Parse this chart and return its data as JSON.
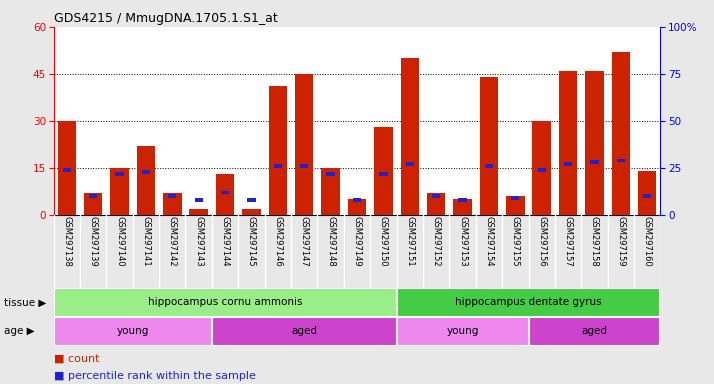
{
  "title": "GDS4215 / MmugDNA.1705.1.S1_at",
  "samples": [
    "GSM297138",
    "GSM297139",
    "GSM297140",
    "GSM297141",
    "GSM297142",
    "GSM297143",
    "GSM297144",
    "GSM297145",
    "GSM297146",
    "GSM297147",
    "GSM297148",
    "GSM297149",
    "GSM297150",
    "GSM297151",
    "GSM297152",
    "GSM297153",
    "GSM297154",
    "GSM297155",
    "GSM297156",
    "GSM297157",
    "GSM297158",
    "GSM297159",
    "GSM297160"
  ],
  "counts": [
    30,
    7,
    15,
    22,
    7,
    2,
    13,
    2,
    41,
    45,
    15,
    5,
    28,
    50,
    7,
    5,
    44,
    6,
    30,
    46,
    46,
    52,
    14
  ],
  "percentiles": [
    24,
    10,
    22,
    23,
    10,
    8,
    12,
    8,
    26,
    26,
    22,
    8,
    22,
    27,
    10,
    8,
    26,
    9,
    24,
    27,
    28,
    29,
    10
  ],
  "bar_color": "#cc2200",
  "percentile_color": "#2222cc",
  "ylim_left": [
    0,
    60
  ],
  "ylim_right": [
    0,
    100
  ],
  "yticks_left": [
    0,
    15,
    30,
    45,
    60
  ],
  "yticks_right": [
    0,
    25,
    50,
    75,
    100
  ],
  "ytick_labels_right": [
    "0",
    "25",
    "50",
    "75",
    "100%"
  ],
  "grid_values": [
    15,
    30,
    45
  ],
  "background_color": "#e8e8e8",
  "plot_bg": "#ffffff",
  "xlabels_bg": "#d0d0d0",
  "tissue_groups": [
    {
      "label": "hippocampus cornu ammonis",
      "start": 0,
      "end": 13,
      "color": "#99ee88"
    },
    {
      "label": "hippocampus dentate gyrus",
      "start": 13,
      "end": 23,
      "color": "#44cc44"
    }
  ],
  "age_groups": [
    {
      "label": "young",
      "start": 0,
      "end": 6,
      "color": "#ee88ee"
    },
    {
      "label": "aged",
      "start": 6,
      "end": 13,
      "color": "#cc44cc"
    },
    {
      "label": "young",
      "start": 13,
      "end": 18,
      "color": "#ee88ee"
    },
    {
      "label": "aged",
      "start": 18,
      "end": 23,
      "color": "#cc44cc"
    }
  ],
  "legend_count_color": "#cc2200",
  "legend_pct_color": "#2222cc",
  "tissue_label": "tissue",
  "age_label": "age"
}
